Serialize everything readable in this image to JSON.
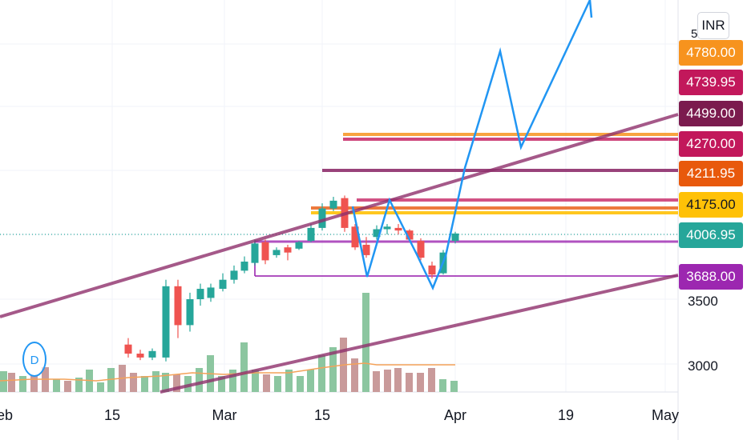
{
  "currency": "INR",
  "event_marker": "D",
  "colors": {
    "up": "#26a69a",
    "down": "#ef5350",
    "vol_up": "#8cc6a0",
    "vol_down": "#c99a9a",
    "blue_projection": "#2196f3",
    "trend": "#8e2f6b",
    "ma": "#f4a259"
  },
  "axis": {
    "x_ticks": [
      "eb",
      "15",
      "Mar",
      "15",
      "Apr",
      "19",
      "May"
    ],
    "y_ticks": [
      "3500",
      "3000"
    ]
  },
  "price_tags": [
    {
      "label": "4780.00",
      "color": "#f7931e"
    },
    {
      "label": "4739.95",
      "color": "#c2185b"
    },
    {
      "label": "4499.00",
      "color": "#7b1b4e"
    },
    {
      "label": "4270.00",
      "color": "#c2185b"
    },
    {
      "label": "4211.95",
      "color": "#e8590c"
    },
    {
      "label": "4175.00",
      "color": "#ffc107"
    },
    {
      "label": "4006.95",
      "color": "#26a69a"
    },
    {
      "label": "3688.00",
      "color": "#9c27b0"
    }
  ],
  "chart_data": {
    "type": "candlestick",
    "x_axis": "date",
    "y_axis": "price (INR)",
    "y_ticks": [
      3500,
      3000
    ],
    "candles": [
      {
        "x": 160,
        "open": 3150,
        "close": 3080,
        "high": 3200,
        "low": 3050
      },
      {
        "x": 175,
        "open": 3080,
        "close": 3050,
        "high": 3110,
        "low": 3030
      },
      {
        "x": 190,
        "open": 3050,
        "close": 3100,
        "high": 3120,
        "low": 3030
      },
      {
        "x": 207,
        "open": 3050,
        "close": 3600,
        "high": 3650,
        "low": 3020
      },
      {
        "x": 222,
        "open": 3600,
        "close": 3300,
        "high": 3650,
        "low": 3200
      },
      {
        "x": 237,
        "open": 3300,
        "close": 3500,
        "high": 3550,
        "low": 3250
      },
      {
        "x": 250,
        "open": 3500,
        "close": 3580,
        "high": 3620,
        "low": 3450
      },
      {
        "x": 263,
        "open": 3510,
        "close": 3590,
        "high": 3620,
        "low": 3480
      },
      {
        "x": 278,
        "open": 3580,
        "close": 3650,
        "high": 3700,
        "low": 3560
      },
      {
        "x": 292,
        "open": 3650,
        "close": 3720,
        "high": 3760,
        "low": 3620
      },
      {
        "x": 305,
        "open": 3720,
        "close": 3790,
        "high": 3830,
        "low": 3700
      },
      {
        "x": 318,
        "open": 3780,
        "close": 3930,
        "high": 3960,
        "low": 3760
      },
      {
        "x": 331,
        "open": 3940,
        "close": 3800,
        "high": 3960,
        "low": 3770
      },
      {
        "x": 345,
        "open": 3840,
        "close": 3880,
        "high": 3900,
        "low": 3820
      },
      {
        "x": 359,
        "open": 3900,
        "close": 3860,
        "high": 3920,
        "low": 3800
      },
      {
        "x": 373,
        "open": 3890,
        "close": 3940,
        "high": 3950,
        "low": 3880
      },
      {
        "x": 388,
        "open": 3950,
        "close": 4050,
        "high": 4080,
        "low": 3940
      },
      {
        "x": 402,
        "open": 4050,
        "close": 4200,
        "high": 4240,
        "low": 4030
      },
      {
        "x": 416,
        "open": 4200,
        "close": 4260,
        "high": 4290,
        "low": 4180
      },
      {
        "x": 430,
        "open": 4280,
        "close": 4050,
        "high": 4300,
        "low": 4020
      },
      {
        "x": 443,
        "open": 4060,
        "close": 3900,
        "high": 4080,
        "low": 3880
      },
      {
        "x": 457,
        "open": 3920,
        "close": 3840,
        "high": 3980,
        "low": 3820
      },
      {
        "x": 470,
        "open": 3980,
        "close": 4040,
        "high": 4070,
        "low": 3960
      },
      {
        "x": 483,
        "open": 4040,
        "close": 4060,
        "high": 4080,
        "low": 4000
      },
      {
        "x": 497,
        "open": 4050,
        "close": 4030,
        "high": 4080,
        "low": 4000
      },
      {
        "x": 511,
        "open": 4030,
        "close": 3960,
        "high": 4040,
        "low": 3940
      },
      {
        "x": 525,
        "open": 3950,
        "close": 3820,
        "high": 3970,
        "low": 3800
      },
      {
        "x": 539,
        "open": 3760,
        "close": 3690,
        "high": 3790,
        "low": 3660
      },
      {
        "x": 553,
        "open": 3700,
        "close": 3860,
        "high": 3880,
        "low": 3690
      },
      {
        "x": 568,
        "open": 3950,
        "close": 4007,
        "high": 4020,
        "low": 3930
      }
    ]
  }
}
